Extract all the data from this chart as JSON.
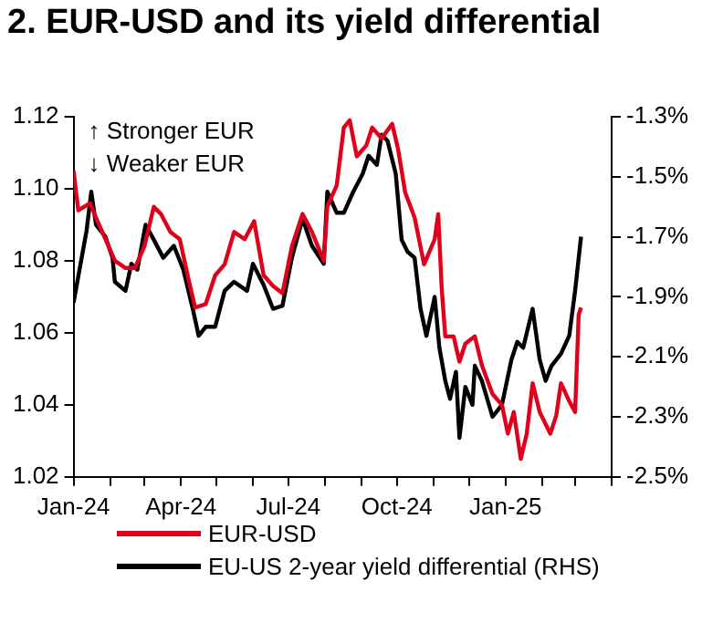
{
  "chart_data": {
    "type": "line",
    "title": "2. EUR-USD and its yield differential",
    "annotations": [
      "↑ Stronger EUR",
      "↓ Weaker EUR"
    ],
    "xlim": [
      "2024-01-01",
      "2025-04-01"
    ],
    "xticks": [
      {
        "value": "2024-01-01",
        "label": "Jan-24"
      },
      {
        "value": "2024-02-01",
        "label": null
      },
      {
        "value": "2024-03-01",
        "label": null
      },
      {
        "value": "2024-04-01",
        "label": "Apr-24"
      },
      {
        "value": "2024-05-01",
        "label": null
      },
      {
        "value": "2024-06-01",
        "label": null
      },
      {
        "value": "2024-07-01",
        "label": "Jul-24"
      },
      {
        "value": "2024-08-01",
        "label": null
      },
      {
        "value": "2024-09-01",
        "label": null
      },
      {
        "value": "2024-10-01",
        "label": "Oct-24"
      },
      {
        "value": "2024-11-01",
        "label": null
      },
      {
        "value": "2024-12-01",
        "label": null
      },
      {
        "value": "2025-01-01",
        "label": "Jan-25"
      },
      {
        "value": "2025-02-01",
        "label": null
      },
      {
        "value": "2025-03-01",
        "label": null
      },
      {
        "value": "2025-04-01",
        "label": null
      }
    ],
    "ylim": [
      1.02,
      1.12
    ],
    "yticks": [
      {
        "value": 1.02,
        "label": "1.02"
      },
      {
        "value": 1.04,
        "label": "1.04"
      },
      {
        "value": 1.06,
        "label": "1.06"
      },
      {
        "value": 1.08,
        "label": "1.08"
      },
      {
        "value": 1.1,
        "label": "1.10"
      },
      {
        "value": 1.12,
        "label": "1.12"
      }
    ],
    "y2lim": [
      -2.5,
      -1.3
    ],
    "y2ticks": [
      {
        "value": -2.5,
        "label": "-2.5%"
      },
      {
        "value": -2.3,
        "label": "-2.3%"
      },
      {
        "value": -2.1,
        "label": "-2.1%"
      },
      {
        "value": -1.9,
        "label": "-1.9%"
      },
      {
        "value": -1.7,
        "label": "-1.7%"
      },
      {
        "value": -1.5,
        "label": "-1.5%"
      },
      {
        "value": -1.3,
        "label": "-1.3%"
      }
    ],
    "grid": false,
    "legend": "bottom",
    "marker": "none",
    "line_style": "solid",
    "series": [
      {
        "name": "EUR-USD",
        "color": "#e0001b",
        "x": [
          "2024-01-01",
          "2024-01-05",
          "2024-01-15",
          "2024-01-20",
          "2024-01-28",
          "2024-02-05",
          "2024-02-14",
          "2024-02-22",
          "2024-03-01",
          "2024-03-09",
          "2024-03-15",
          "2024-03-23",
          "2024-03-31",
          "2024-04-08",
          "2024-04-13",
          "2024-04-22",
          "2024-04-30",
          "2024-05-08",
          "2024-05-16",
          "2024-05-25",
          "2024-06-02",
          "2024-06-10",
          "2024-06-18",
          "2024-06-26",
          "2024-07-04",
          "2024-07-13",
          "2024-07-21",
          "2024-07-31",
          "2024-08-03",
          "2024-08-11",
          "2024-08-17",
          "2024-08-22",
          "2024-08-28",
          "2024-09-05",
          "2024-09-10",
          "2024-09-18",
          "2024-09-27",
          "2024-10-02",
          "2024-10-08",
          "2024-10-16",
          "2024-10-24",
          "2024-11-02",
          "2024-11-05",
          "2024-11-08",
          "2024-11-11",
          "2024-11-18",
          "2024-11-23",
          "2024-11-28",
          "2024-12-06",
          "2024-12-12",
          "2024-12-21",
          "2024-12-29",
          "2025-01-03",
          "2025-01-08",
          "2025-01-14",
          "2025-01-19",
          "2025-01-24",
          "2025-01-30",
          "2025-02-08",
          "2025-02-13",
          "2025-02-17",
          "2025-02-24",
          "2025-03-01",
          "2025-03-04",
          "2025-03-06"
        ],
        "values": [
          1.105,
          1.094,
          1.096,
          1.092,
          1.086,
          1.08,
          1.078,
          1.078,
          1.084,
          1.095,
          1.093,
          1.088,
          1.086,
          1.074,
          1.067,
          1.068,
          1.076,
          1.079,
          1.088,
          1.086,
          1.091,
          1.076,
          1.073,
          1.071,
          1.084,
          1.093,
          1.088,
          1.08,
          1.095,
          1.101,
          1.117,
          1.119,
          1.109,
          1.112,
          1.117,
          1.114,
          1.118,
          1.111,
          1.099,
          1.092,
          1.079,
          1.086,
          1.093,
          1.072,
          1.059,
          1.059,
          1.052,
          1.057,
          1.059,
          1.051,
          1.043,
          1.04,
          1.032,
          1.038,
          1.025,
          1.032,
          1.046,
          1.038,
          1.032,
          1.037,
          1.046,
          1.041,
          1.038,
          1.065,
          1.067
        ]
      },
      {
        "name": "EU-US 2-year yield differential (RHS)",
        "color": "#000000",
        "axis": "y2",
        "x": [
          "2024-01-01",
          "2024-01-06",
          "2024-01-12",
          "2024-01-16",
          "2024-01-20",
          "2024-01-28",
          "2024-02-03",
          "2024-02-05",
          "2024-02-14",
          "2024-02-19",
          "2024-02-24",
          "2024-03-02",
          "2024-03-09",
          "2024-03-17",
          "2024-03-26",
          "2024-04-03",
          "2024-04-11",
          "2024-04-16",
          "2024-04-22",
          "2024-04-30",
          "2024-05-08",
          "2024-05-16",
          "2024-05-27",
          "2024-06-01",
          "2024-06-10",
          "2024-06-18",
          "2024-06-26",
          "2024-07-04",
          "2024-07-13",
          "2024-07-21",
          "2024-07-31",
          "2024-08-03",
          "2024-08-11",
          "2024-08-17",
          "2024-08-25",
          "2024-09-02",
          "2024-09-07",
          "2024-09-14",
          "2024-09-18",
          "2024-09-23",
          "2024-09-30",
          "2024-10-05",
          "2024-10-10",
          "2024-10-16",
          "2024-10-21",
          "2024-10-26",
          "2024-11-02",
          "2024-11-06",
          "2024-11-11",
          "2024-11-15",
          "2024-11-20",
          "2024-11-23",
          "2024-11-28",
          "2024-12-04",
          "2024-12-06",
          "2024-12-12",
          "2024-12-21",
          "2024-12-29",
          "2025-01-06",
          "2025-01-11",
          "2025-01-16",
          "2025-01-24",
          "2025-01-30",
          "2025-02-04",
          "2025-02-09",
          "2025-02-17",
          "2025-02-24",
          "2025-03-01",
          "2025-03-06"
        ],
        "values": [
          -1.92,
          -1.81,
          -1.68,
          -1.55,
          -1.66,
          -1.7,
          -1.77,
          -1.85,
          -1.88,
          -1.79,
          -1.81,
          -1.66,
          -1.71,
          -1.77,
          -1.73,
          -1.81,
          -1.94,
          -2.03,
          -2.0,
          -2.0,
          -1.88,
          -1.85,
          -1.88,
          -1.79,
          -1.86,
          -1.94,
          -1.93,
          -1.77,
          -1.64,
          -1.73,
          -1.79,
          -1.55,
          -1.62,
          -1.62,
          -1.55,
          -1.49,
          -1.43,
          -1.46,
          -1.36,
          -1.38,
          -1.49,
          -1.71,
          -1.75,
          -1.77,
          -1.94,
          -2.03,
          -1.9,
          -2.07,
          -2.18,
          -2.24,
          -2.15,
          -2.37,
          -2.2,
          -2.26,
          -2.13,
          -2.18,
          -2.3,
          -2.26,
          -2.11,
          -2.05,
          -2.07,
          -1.94,
          -2.11,
          -2.18,
          -2.13,
          -2.09,
          -2.03,
          -1.88,
          -1.7
        ]
      }
    ]
  }
}
